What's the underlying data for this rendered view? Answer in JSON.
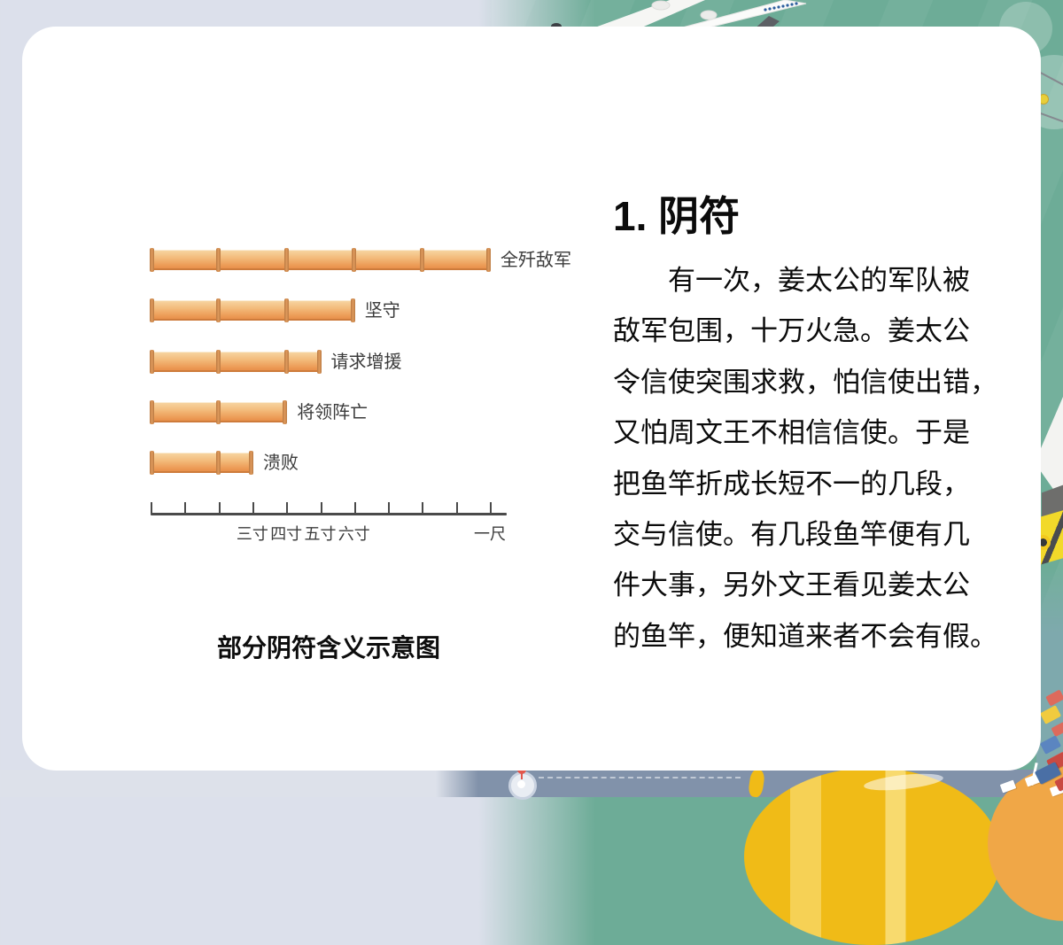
{
  "colors": {
    "background_gray": "#dce0eb",
    "background_teal": "#6dac97",
    "bottom_band_blue": "#8192aa",
    "card_white": "#ffffff",
    "bamboo_light": "#f7d6a4",
    "bamboo_dark": "#e48a45",
    "bamboo_joint": "#b97a42",
    "axis_color": "#4a4a4a",
    "text_black": "#0b0b0b"
  },
  "chart_data": {
    "type": "bar",
    "orientation": "horizontal",
    "title": "部分阴符含义示意图",
    "categories": [
      "全歼敌军",
      "坚守",
      "请求增援",
      "将领阵亡",
      "溃败"
    ],
    "values": [
      10,
      6,
      5,
      4,
      3
    ],
    "unit": "寸",
    "xlim": [
      0,
      10.5
    ],
    "tick_positions": [
      0,
      1,
      2,
      3,
      4,
      5,
      6,
      7,
      8,
      9,
      10
    ],
    "tick_labels": [
      {
        "value": 3,
        "label": "三寸"
      },
      {
        "value": 4,
        "label": "四寸"
      },
      {
        "value": 5,
        "label": "五寸"
      },
      {
        "value": 6,
        "label": "六寸"
      },
      {
        "value": 10,
        "label": "一尺"
      }
    ],
    "segment_length": 2,
    "grid": false,
    "legend": "none"
  },
  "content": {
    "heading": "1. 阴符",
    "paragraph_lines": [
      "　　有一次，姜太公的军队被",
      "敌军包围，十万火急。姜太公",
      "令信使突围求救，怕信使出错，",
      "又怕周文王不相信信使。于是",
      "把鱼竿折成长短不一的几段，",
      "交与信使。有几段鱼竿便有几",
      "件大事，另外文王看见姜太公",
      "的鱼竿，便知道来者不会有假。"
    ],
    "caption": "部分阴符含义示意图"
  },
  "decor": {
    "airplane_icon": "white-airliner-top-view",
    "balloon_icon": "yellow-hot-air-balloon",
    "island_icon": "orange-isometric-island",
    "container_icon": "red-blue-shipping-containers",
    "blocks_icon": "red-yellow-blue-toy-blocks",
    "pin_icon": "map-pin-marker",
    "fan_icon": "translucent-propeller-circle"
  }
}
